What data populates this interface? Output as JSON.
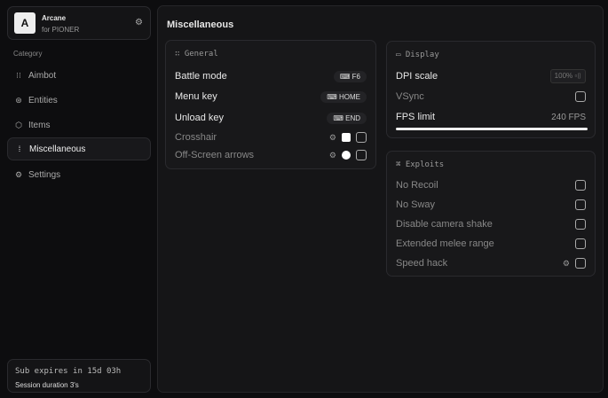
{
  "brand": {
    "logo": "A",
    "name": "Arcane",
    "sub": "for PIONER"
  },
  "sidebar": {
    "category": "Category",
    "items": [
      {
        "label": "Aimbot",
        "icon": "crosshair-icon"
      },
      {
        "label": "Entities",
        "icon": "entities-icon"
      },
      {
        "label": "Items",
        "icon": "cube-icon"
      },
      {
        "label": "Miscellaneous",
        "icon": "misc-icon",
        "active": true
      },
      {
        "label": "Settings",
        "icon": "gear-icon"
      }
    ]
  },
  "subscription": {
    "expires": "Sub expires in 15d 03h",
    "session": "Session duration 3's"
  },
  "main": {
    "title": "Miscellaneous",
    "general": {
      "title": "General",
      "rows": [
        {
          "label": "Battle mode",
          "key": "F6"
        },
        {
          "label": "Menu key",
          "key": "HOME"
        },
        {
          "label": "Unload key",
          "key": "END"
        },
        {
          "label": "Crosshair",
          "checked": false
        },
        {
          "label": "Off-Screen arrows",
          "checked": false
        }
      ]
    },
    "display": {
      "title": "Display",
      "dpi_label": "DPI scale",
      "dpi_value": "100%",
      "vsync_label": "VSync",
      "vsync": false,
      "fps_label": "FPS limit",
      "fps_value": "240 FPS",
      "fps_fraction": 1.0
    },
    "exploits": {
      "title": "Exploits",
      "rows": [
        {
          "label": "No Recoil",
          "checked": false
        },
        {
          "label": "No Sway",
          "checked": false
        },
        {
          "label": "Disable camera shake",
          "checked": false
        },
        {
          "label": "Extended melee range",
          "checked": false
        },
        {
          "label": "Speed hack",
          "checked": false
        }
      ]
    }
  },
  "colors": {
    "background": "#0d0d0f",
    "panel": "#151517",
    "accent": "#eeeeee"
  }
}
